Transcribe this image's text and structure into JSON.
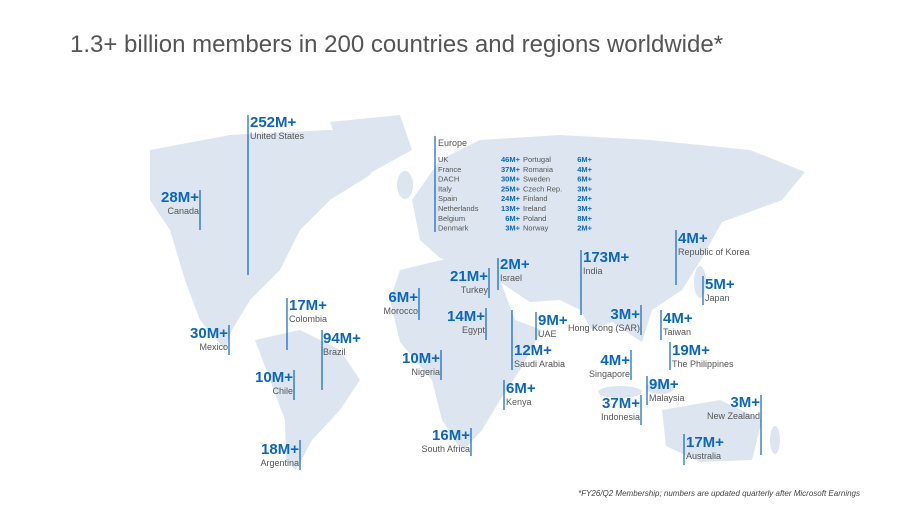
{
  "title": "1.3+ billion members in 200 countries and regions worldwide*",
  "countries": [
    {
      "value": "252M+",
      "name": "United States"
    },
    {
      "value": "28M+",
      "name": "Canada"
    },
    {
      "value": "30M+",
      "name": "Mexico"
    },
    {
      "value": "17M+",
      "name": "Colombia"
    },
    {
      "value": "94M+",
      "name": "Brazil"
    },
    {
      "value": "10M+",
      "name": "Chile"
    },
    {
      "value": "18M+",
      "name": "Argentina"
    },
    {
      "value": "6M+",
      "name": "Morocco"
    },
    {
      "value": "21M+",
      "name": "Turkey"
    },
    {
      "value": "2M+",
      "name": "Israel"
    },
    {
      "value": "14M+",
      "name": "Egypt"
    },
    {
      "value": "10M+",
      "name": "Nigeria"
    },
    {
      "value": "9M+",
      "name": "UAE"
    },
    {
      "value": "12M+",
      "name": "Saudi Arabia"
    },
    {
      "value": "6M+",
      "name": "Kenya"
    },
    {
      "value": "16M+",
      "name": "South Africa"
    },
    {
      "value": "173M+",
      "name": "India"
    },
    {
      "value": "3M+",
      "name": "Hong Kong (SAR)"
    },
    {
      "value": "4M+",
      "name": "Singapore"
    },
    {
      "value": "37M+",
      "name": "Indonesia"
    },
    {
      "value": "9M+",
      "name": "Malaysia"
    },
    {
      "value": "4M+",
      "name": "Republic of Korea"
    },
    {
      "value": "5M+",
      "name": "Japan"
    },
    {
      "value": "4M+",
      "name": "Taiwan"
    },
    {
      "value": "19M+",
      "name": "The Philippines"
    },
    {
      "value": "3M+",
      "name": "New Zealand"
    },
    {
      "value": "17M+",
      "name": "Australia"
    }
  ],
  "europe": {
    "heading": "Europe",
    "rows": [
      [
        "UK",
        "46M+",
        "Portugal",
        "6M+"
      ],
      [
        "France",
        "37M+",
        "Romania",
        "4M+"
      ],
      [
        "DACH",
        "30M+",
        "Sweden",
        "6M+"
      ],
      [
        "Italy",
        "25M+",
        "Czech Rep.",
        "3M+"
      ],
      [
        "Spain",
        "24M+",
        "Finland",
        "2M+"
      ],
      [
        "Netherlands",
        "13M+",
        "Ireland",
        "3M+"
      ],
      [
        "Belgium",
        "6M+",
        "Poland",
        "8M+"
      ],
      [
        "Denmark",
        "3M+",
        "Norway",
        "2M+"
      ]
    ]
  },
  "footnote": "*FY26/Q2 Membership; numbers are updated quarterly after Microsoft Earnings"
}
